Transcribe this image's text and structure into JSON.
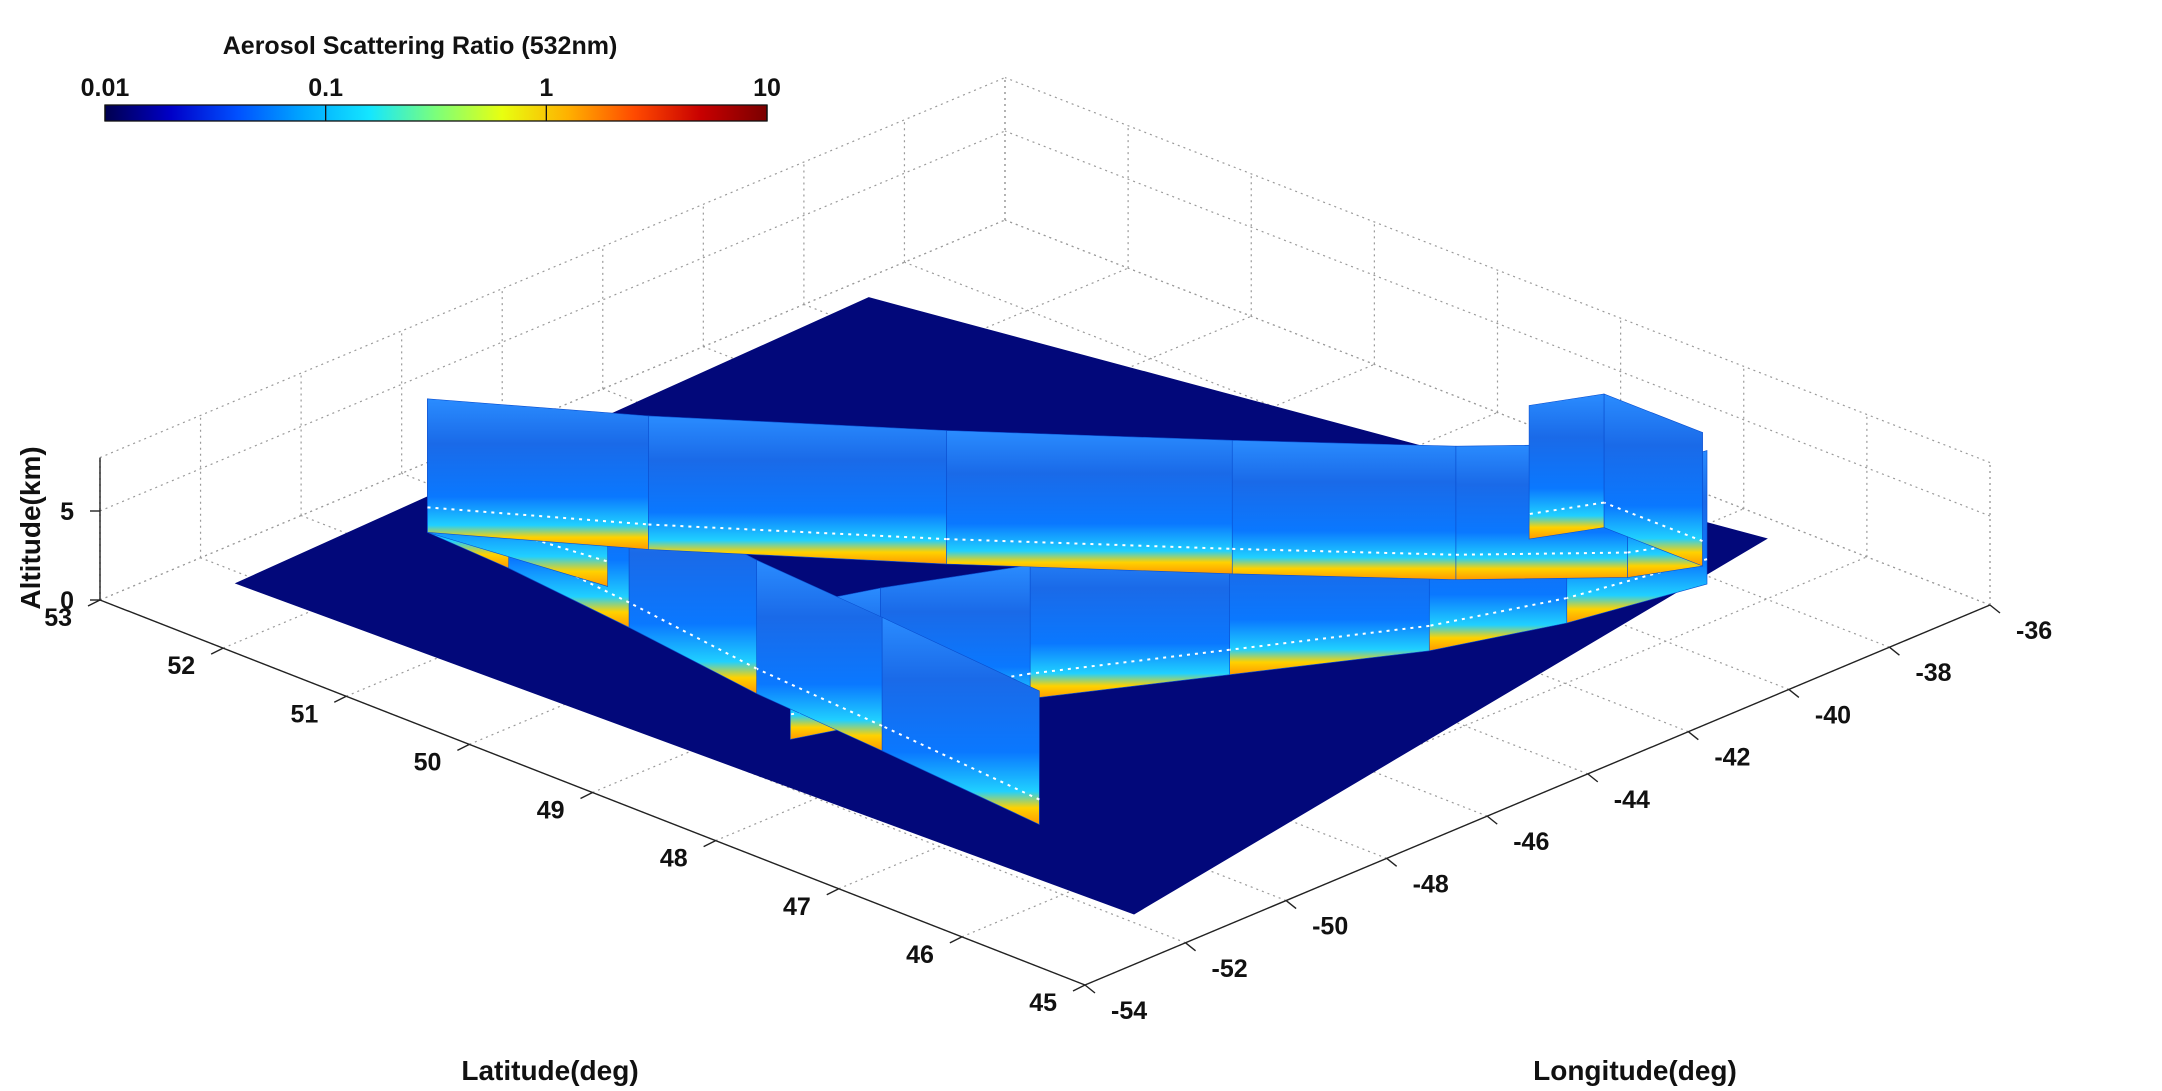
{
  "chart_data": {
    "type": "3d-curtain",
    "colorbar": {
      "title": "Aerosol Scattering Ratio (532nm)",
      "scale": "log",
      "ticks": [
        "0.01",
        "0.1",
        "1",
        "10"
      ],
      "range": [
        0.01,
        10
      ],
      "colormap": [
        "#00004f",
        "#0000c8",
        "#0050ff",
        "#00a8ff",
        "#14e6ff",
        "#7cff7a",
        "#e8ff10",
        "#ffb000",
        "#ff4a00",
        "#c80000",
        "#7a0000"
      ]
    },
    "xlabel": "Longitude(deg)",
    "ylabel": "Latitude(deg)",
    "zlabel": "Altitude(km)",
    "x_ticks": [
      "-54",
      "-52",
      "-50",
      "-48",
      "-46",
      "-44",
      "-42",
      "-40",
      "-38",
      "-36"
    ],
    "y_ticks": [
      "45",
      "46",
      "47",
      "48",
      "49",
      "50",
      "51",
      "52",
      "53"
    ],
    "z_ticks": [
      "0",
      "5"
    ],
    "xlim": [
      -54,
      -36
    ],
    "ylim": [
      45,
      53
    ],
    "zlim": [
      0,
      8
    ],
    "grid": true,
    "surface_color": "#02087a",
    "flight_track_segments": [
      {
        "name": "",
        "path": [
          [
            -50.5,
            46.8
          ],
          [
            -50.2,
            48.2
          ],
          [
            -50.0,
            49.3
          ],
          [
            -49.6,
            50.5
          ],
          [
            -49.3,
            51.6
          ],
          [
            -49.2,
            52.3
          ]
        ]
      },
      {
        "name": "",
        "path": [
          [
            -49.2,
            52.3
          ],
          [
            -48.8,
            51.0
          ]
        ]
      },
      {
        "name": "",
        "path": [
          [
            -49.2,
            52.3
          ],
          [
            -47.5,
            51.2
          ],
          [
            -45.0,
            49.8
          ],
          [
            -42.5,
            48.5
          ],
          [
            -40.5,
            47.5
          ],
          [
            -38.8,
            46.8
          ],
          [
            -37.8,
            46.6
          ]
        ]
      },
      {
        "name": "",
        "path": [
          [
            -37.8,
            46.6
          ],
          [
            -37.8,
            47.4
          ],
          [
            -38.8,
            47.6
          ]
        ]
      },
      {
        "name": "",
        "path": [
          [
            -38.2,
            46.4
          ],
          [
            -40.5,
            46.6
          ],
          [
            -42.5,
            46.9
          ],
          [
            -45.0,
            47.5
          ],
          [
            -47.5,
            48.1
          ],
          [
            -49.5,
            48.5
          ],
          [
            -50.8,
            48.7
          ]
        ]
      }
    ]
  }
}
